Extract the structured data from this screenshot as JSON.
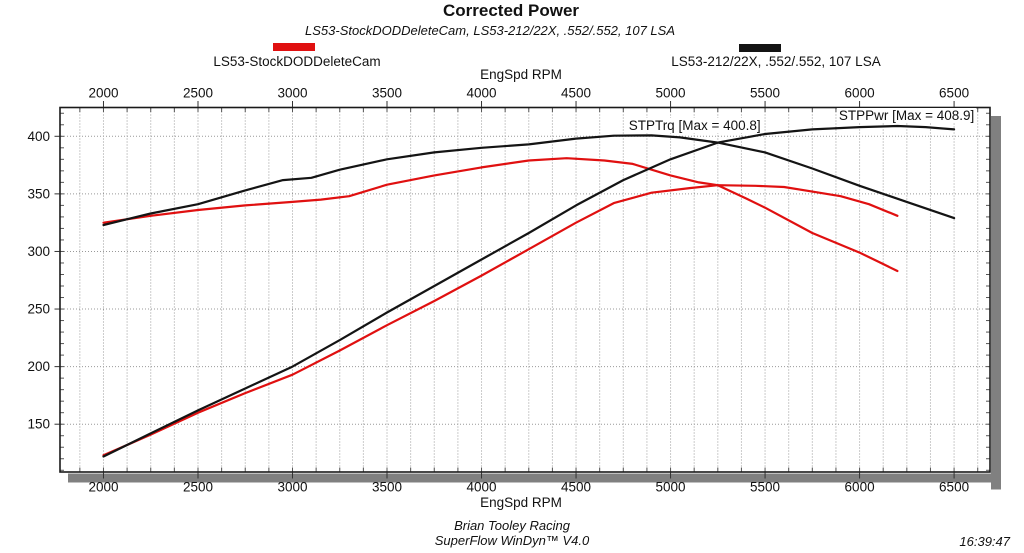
{
  "header": {
    "title": "Corrected Power",
    "subtitle": "LS53-StockDODDeleteCam, LS53-212/22X, .552/.552, 107 LSA"
  },
  "legend": [
    {
      "label": "LS53-StockDODDeleteCam",
      "color": "#e01010"
    },
    {
      "label": "LS53-212/22X, .552/.552, 107 LSA",
      "color": "#141414"
    }
  ],
  "footer": {
    "line1": "Brian Tooley Racing",
    "line2": "SuperFlow WinDyn™ V4.0",
    "timestamp": "16:39:47"
  },
  "colors": {
    "grid": "#999999",
    "shadow": "#808080",
    "frame": "#1a1a1a",
    "text": "#111111"
  },
  "chart_data": {
    "type": "line",
    "title": "Corrected Power",
    "xlabel_top": "EngSpd RPM",
    "xlabel_bottom": "EngSpd RPM",
    "x_ticks": [
      2000,
      2500,
      3000,
      3500,
      4000,
      4500,
      5000,
      5500,
      6000,
      6500
    ],
    "x_minor_step": 125,
    "y_ticks": [
      150,
      200,
      250,
      300,
      350,
      400
    ],
    "y_minor_step": 10,
    "xlim": [
      1770,
      6690
    ],
    "ylim": [
      108.5,
      425
    ],
    "grid": "dotted",
    "legend_position": "top",
    "annotations": [
      {
        "text": "STPTrq [Max = 400.8]",
        "x": 4768,
        "y_top": 415.5
      },
      {
        "text": "STPPwr [Max = 408.9]",
        "x": 5880,
        "y_top": 424.6
      }
    ],
    "series": [
      {
        "name": "LS53-StockDODDeleteCam STPTrq",
        "color": "#e01010",
        "points": [
          [
            2000,
            325
          ],
          [
            2250,
            331
          ],
          [
            2500,
            336
          ],
          [
            2750,
            340
          ],
          [
            3000,
            343
          ],
          [
            3150,
            345
          ],
          [
            3300,
            348
          ],
          [
            3500,
            358
          ],
          [
            3750,
            366
          ],
          [
            4000,
            373
          ],
          [
            4250,
            379
          ],
          [
            4450,
            381
          ],
          [
            4650,
            379
          ],
          [
            4800,
            376
          ],
          [
            5000,
            366
          ],
          [
            5150,
            360
          ],
          [
            5250,
            357.5
          ],
          [
            5400,
            346
          ],
          [
            5500,
            338
          ],
          [
            5750,
            316
          ],
          [
            6000,
            299
          ],
          [
            6100,
            291
          ],
          [
            6200,
            283
          ]
        ]
      },
      {
        "name": "LS53-StockDODDeleteCam STPPwr",
        "color": "#e01010",
        "points": [
          [
            2000,
            123
          ],
          [
            2250,
            141
          ],
          [
            2500,
            160
          ],
          [
            2750,
            177
          ],
          [
            3000,
            193
          ],
          [
            3250,
            214
          ],
          [
            3500,
            236
          ],
          [
            3750,
            257
          ],
          [
            4000,
            279
          ],
          [
            4250,
            302
          ],
          [
            4500,
            325
          ],
          [
            4700,
            342
          ],
          [
            4900,
            351
          ],
          [
            5100,
            355
          ],
          [
            5250,
            357.5
          ],
          [
            5450,
            357
          ],
          [
            5600,
            356
          ],
          [
            5750,
            352
          ],
          [
            5900,
            348
          ],
          [
            6050,
            341
          ],
          [
            6200,
            331
          ]
        ]
      },
      {
        "name": "LS53-212/22X, .552/.552, 107 LSA STPTrq",
        "color": "#141414",
        "points": [
          [
            2000,
            323
          ],
          [
            2250,
            333
          ],
          [
            2500,
            341
          ],
          [
            2750,
            353
          ],
          [
            2950,
            362
          ],
          [
            3100,
            364
          ],
          [
            3250,
            371
          ],
          [
            3500,
            380
          ],
          [
            3750,
            386
          ],
          [
            4000,
            390
          ],
          [
            4250,
            393
          ],
          [
            4500,
            398
          ],
          [
            4700,
            400.5
          ],
          [
            4900,
            400.8
          ],
          [
            5050,
            399
          ],
          [
            5250,
            394.5
          ],
          [
            5500,
            386
          ],
          [
            5750,
            372
          ],
          [
            6000,
            357
          ],
          [
            6250,
            343
          ],
          [
            6500,
            329
          ]
        ]
      },
      {
        "name": "LS53-212/22X, .552/.552, 107 LSA STPPwr",
        "color": "#141414",
        "points": [
          [
            2000,
            122
          ],
          [
            2250,
            142
          ],
          [
            2500,
            162
          ],
          [
            2750,
            181
          ],
          [
            3000,
            200
          ],
          [
            3250,
            223
          ],
          [
            3500,
            247
          ],
          [
            3750,
            270
          ],
          [
            4000,
            293
          ],
          [
            4250,
            316
          ],
          [
            4500,
            340
          ],
          [
            4750,
            362
          ],
          [
            5000,
            380
          ],
          [
            5250,
            394.5
          ],
          [
            5400,
            399
          ],
          [
            5500,
            402
          ],
          [
            5750,
            406
          ],
          [
            6000,
            408
          ],
          [
            6200,
            408.9
          ],
          [
            6350,
            408
          ],
          [
            6500,
            406
          ]
        ]
      }
    ]
  }
}
